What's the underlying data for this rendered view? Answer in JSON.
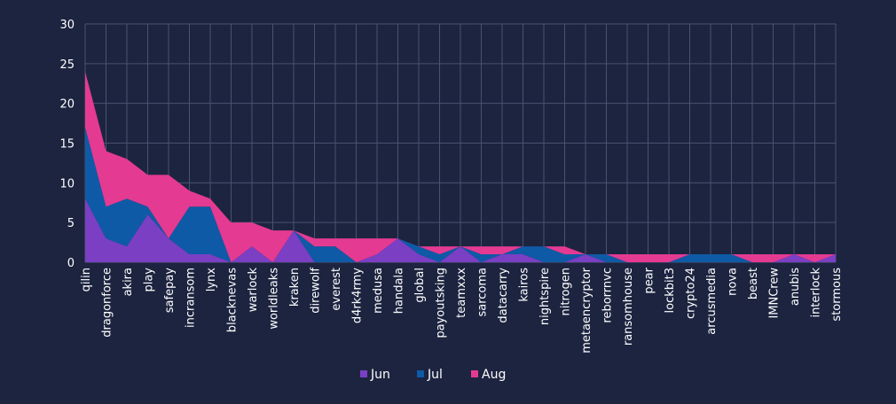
{
  "chart_data": {
    "type": "area",
    "stacked": true,
    "categories": [
      "qilin",
      "dragonforce",
      "akira",
      "play",
      "safepay",
      "incransom",
      "lynx",
      "blacknevas",
      "warlock",
      "worldleaks",
      "kraken",
      "direwolf",
      "everest",
      "d4rk4rmy",
      "medusa",
      "handala",
      "global",
      "payoutsking",
      "teamxxx",
      "sarcoma",
      "datacarry",
      "kairos",
      "nightspire",
      "nitrogen",
      "metaencryptor",
      "reborrnvc",
      "ransomhouse",
      "pear",
      "lockbit3",
      "crypto24",
      "arcusmedia",
      "nova",
      "beast",
      "IMNCrew",
      "anubis",
      "interlock",
      "stormous"
    ],
    "series": [
      {
        "name": "Jun",
        "color": "#7b3fc4",
        "values": [
          8,
          3,
          2,
          6,
          3,
          1,
          1,
          0,
          2,
          0,
          4,
          0,
          0,
          0,
          1,
          3,
          1,
          0,
          2,
          0,
          1,
          1,
          0,
          0,
          1,
          0,
          0,
          0,
          0,
          0,
          0,
          0,
          0,
          0,
          1,
          0,
          1
        ]
      },
      {
        "name": "Jul",
        "color": "#0f5aa6",
        "values": [
          9,
          4,
          6,
          1,
          0,
          6,
          6,
          0,
          0,
          0,
          0,
          2,
          2,
          0,
          0,
          0,
          1,
          1,
          0,
          1,
          0,
          1,
          2,
          1,
          0,
          1,
          0,
          0,
          0,
          1,
          1,
          1,
          0,
          0,
          0,
          0,
          0
        ]
      },
      {
        "name": "Aug",
        "color": "#e43a92",
        "values": [
          7,
          7,
          5,
          4,
          8,
          2,
          1,
          5,
          3,
          4,
          0,
          1,
          1,
          3,
          2,
          0,
          0,
          1,
          0,
          1,
          1,
          0,
          0,
          1,
          0,
          0,
          1,
          1,
          1,
          0,
          0,
          0,
          1,
          1,
          0,
          1,
          0
        ]
      }
    ],
    "ylim": [
      0,
      30
    ],
    "yticks": [
      0,
      5,
      10,
      15,
      20,
      25,
      30
    ],
    "grid": true,
    "legend_position": "bottom"
  }
}
